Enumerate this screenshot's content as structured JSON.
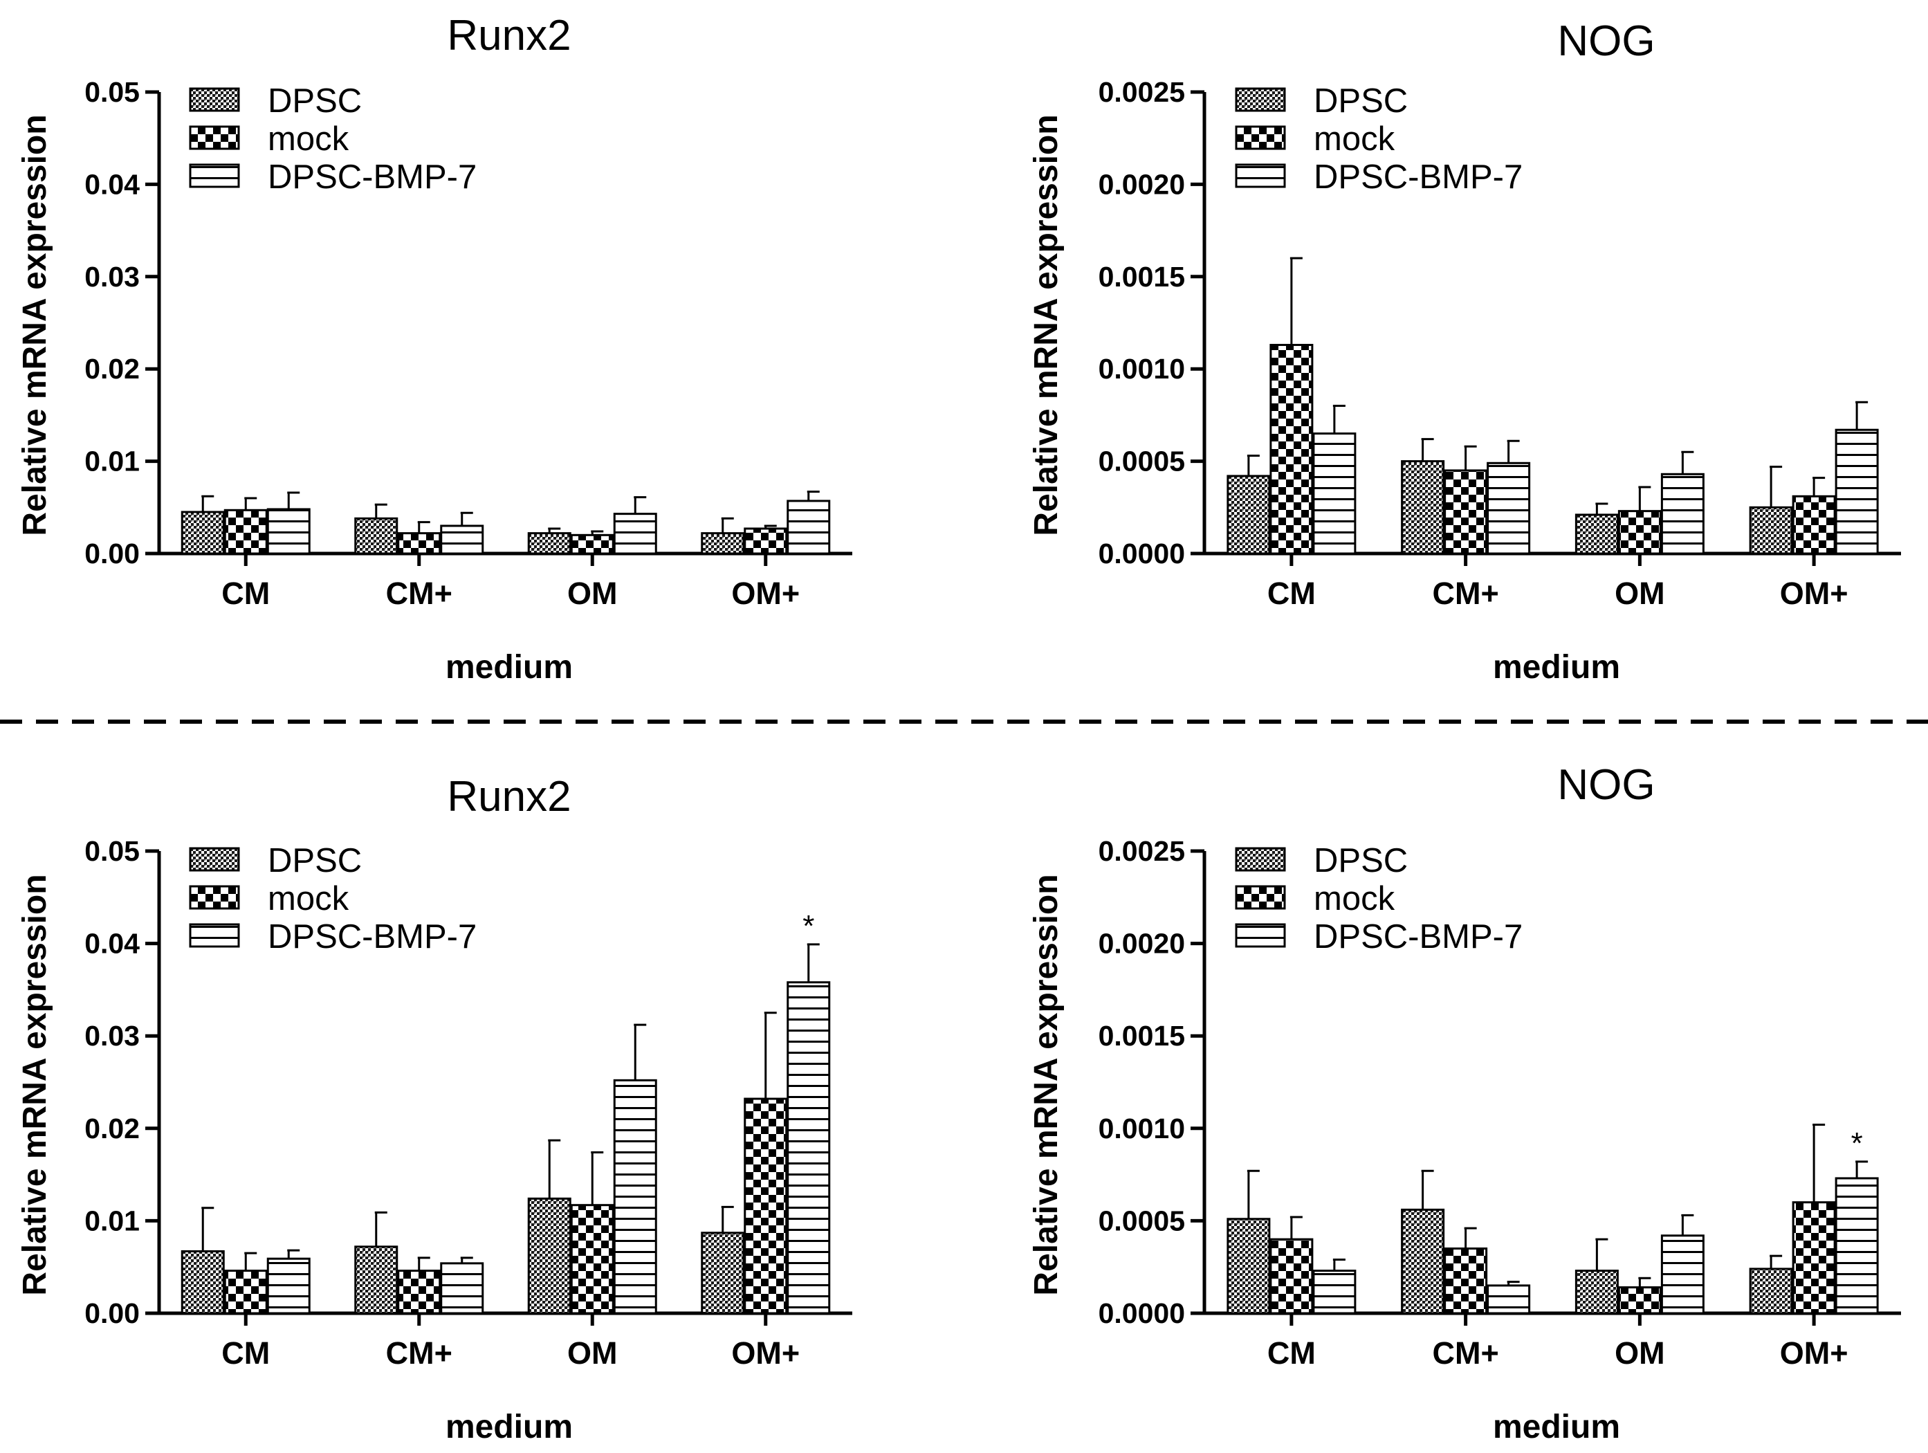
{
  "chart_data": [
    {
      "type": "bar",
      "title": "Runx2",
      "xlabel": "medium",
      "ylabel": "Relative mRNA expression",
      "ylim": [
        0,
        0.05
      ],
      "yticks": [
        "0.00",
        "0.01",
        "0.02",
        "0.03",
        "0.04",
        "0.05"
      ],
      "categories": [
        "CM",
        "CM+",
        "OM",
        "OM+"
      ],
      "legend": [
        "DPSC",
        "mock",
        "DPSC-BMP-7"
      ],
      "series": [
        {
          "name": "DPSC",
          "values": [
            0.0045,
            0.0038,
            0.0022,
            0.0022
          ],
          "errors": [
            0.0017,
            0.0015,
            0.0005,
            0.0016
          ]
        },
        {
          "name": "mock",
          "values": [
            0.0047,
            0.0022,
            0.002,
            0.0027
          ],
          "errors": [
            0.0013,
            0.0012,
            0.0004,
            0.0003
          ]
        },
        {
          "name": "DPSC-BMP-7",
          "values": [
            0.0048,
            0.003,
            0.0043,
            0.0057
          ],
          "errors": [
            0.0018,
            0.0014,
            0.0018,
            0.001
          ]
        }
      ],
      "annotations": []
    },
    {
      "type": "bar",
      "title": "NOG",
      "xlabel": "medium",
      "ylabel": "Relative mRNA expression",
      "ylim": [
        0,
        0.0025
      ],
      "yticks": [
        "0.0000",
        "0.0005",
        "0.0010",
        "0.0015",
        "0.0020",
        "0.0025"
      ],
      "categories": [
        "CM",
        "CM+",
        "OM",
        "OM+"
      ],
      "legend": [
        "DPSC",
        "mock",
        "DPSC-BMP-7"
      ],
      "series": [
        {
          "name": "DPSC",
          "values": [
            0.00042,
            0.0005,
            0.00021,
            0.00025
          ],
          "errors": [
            0.00011,
            0.00012,
            6e-05,
            0.00022
          ]
        },
        {
          "name": "mock",
          "values": [
            0.00113,
            0.00045,
            0.00023,
            0.00031
          ],
          "errors": [
            0.00047,
            0.00013,
            0.00013,
            0.0001
          ]
        },
        {
          "name": "DPSC-BMP-7",
          "values": [
            0.00065,
            0.00049,
            0.00043,
            0.00067
          ],
          "errors": [
            0.00015,
            0.00012,
            0.00012,
            0.00015
          ]
        }
      ],
      "annotations": []
    },
    {
      "type": "bar",
      "title": "Runx2",
      "xlabel": "medium",
      "ylabel": "Relative mRNA expression",
      "ylim": [
        0,
        0.05
      ],
      "yticks": [
        "0.00",
        "0.01",
        "0.02",
        "0.03",
        "0.04",
        "0.05"
      ],
      "categories": [
        "CM",
        "CM+",
        "OM",
        "OM+"
      ],
      "legend": [
        "DPSC",
        "mock",
        "DPSC-BMP-7"
      ],
      "series": [
        {
          "name": "DPSC",
          "values": [
            0.0067,
            0.0072,
            0.0124,
            0.0087
          ],
          "errors": [
            0.0047,
            0.0037,
            0.0063,
            0.0028
          ]
        },
        {
          "name": "mock",
          "values": [
            0.0046,
            0.0046,
            0.0117,
            0.0232
          ],
          "errors": [
            0.0019,
            0.0014,
            0.0057,
            0.0093
          ]
        },
        {
          "name": "DPSC-BMP-7",
          "values": [
            0.0059,
            0.0054,
            0.0252,
            0.0358
          ],
          "errors": [
            0.0009,
            0.0006,
            0.006,
            0.0041
          ]
        }
      ],
      "annotations": [
        {
          "category": "OM+",
          "series": "DPSC-BMP-7",
          "text": "*"
        }
      ]
    },
    {
      "type": "bar",
      "title": "NOG",
      "xlabel": "medium",
      "ylabel": "Relative mRNA expression",
      "ylim": [
        0,
        0.0025
      ],
      "yticks": [
        "0.0000",
        "0.0005",
        "0.0010",
        "0.0015",
        "0.0020",
        "0.0025"
      ],
      "categories": [
        "CM",
        "CM+",
        "OM",
        "OM+"
      ],
      "legend": [
        "DPSC",
        "mock",
        "DPSC-BMP-7"
      ],
      "series": [
        {
          "name": "DPSC",
          "values": [
            0.00051,
            0.00056,
            0.00023,
            0.00024
          ],
          "errors": [
            0.00026,
            0.00021,
            0.00017,
            7e-05
          ]
        },
        {
          "name": "mock",
          "values": [
            0.0004,
            0.00035,
            0.00014,
            0.0006
          ],
          "errors": [
            0.00012,
            0.00011,
            5e-05,
            0.00042
          ]
        },
        {
          "name": "DPSC-BMP-7",
          "values": [
            0.00023,
            0.00015,
            0.00042,
            0.00073
          ],
          "errors": [
            6e-05,
            2e-05,
            0.00011,
            9e-05
          ]
        }
      ],
      "annotations": [
        {
          "category": "OM+",
          "series": "DPSC-BMP-7",
          "text": "*"
        }
      ]
    }
  ]
}
